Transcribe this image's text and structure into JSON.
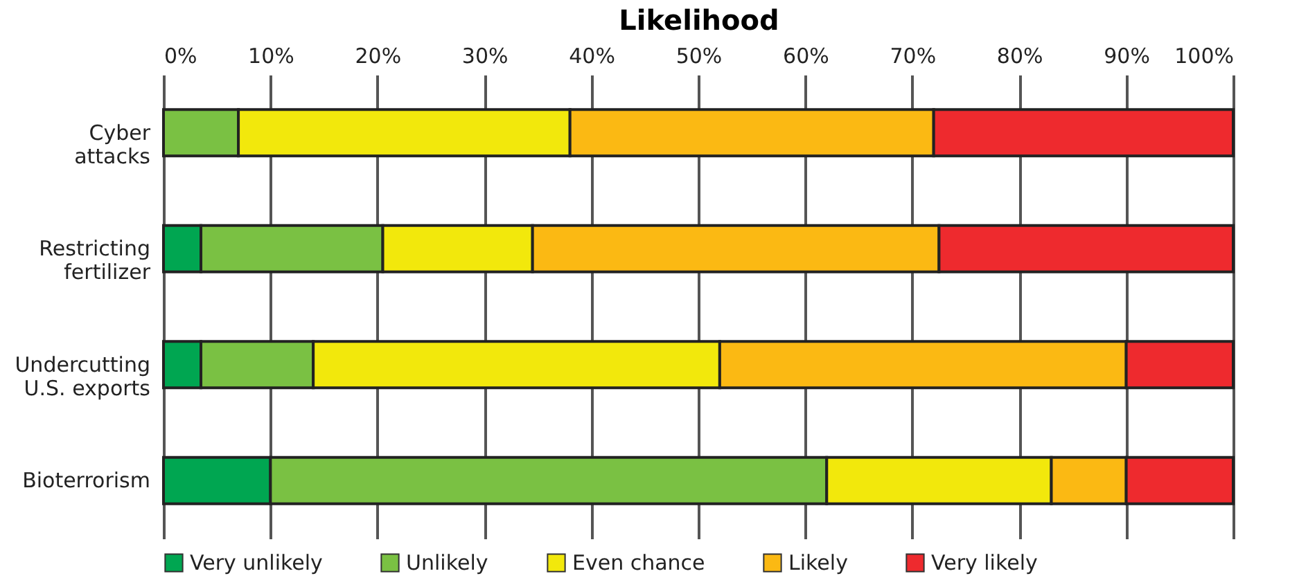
{
  "chart_data": {
    "type": "bar",
    "orientation": "horizontal",
    "stacked": true,
    "xlabel": "Likelihood",
    "categories": [
      "Cyber attacks",
      "Restricting fertilizer",
      "Undercutting U.S. exports",
      "Bioterrorism"
    ],
    "series": [
      {
        "name": "Very unlikely",
        "color": "#00a651",
        "values": [
          0,
          3.5,
          3.5,
          10
        ]
      },
      {
        "name": "Unlikely",
        "color": "#7ac143",
        "values": [
          7,
          17,
          10.5,
          52
        ]
      },
      {
        "name": "Even chance",
        "color": "#f2e80c",
        "values": [
          31,
          14,
          38,
          21
        ]
      },
      {
        "name": "Likely",
        "color": "#fbb913",
        "values": [
          34,
          38,
          38,
          7
        ]
      },
      {
        "name": "Very likely",
        "color": "#ee2a2e",
        "values": [
          28,
          27.5,
          10,
          10
        ]
      }
    ],
    "xlim": [
      0,
      100
    ],
    "xticks": [
      {
        "value": 0,
        "label": "0%"
      },
      {
        "value": 10,
        "label": "10%"
      },
      {
        "value": 20,
        "label": "20%"
      },
      {
        "value": 30,
        "label": "30%"
      },
      {
        "value": 40,
        "label": "40%"
      },
      {
        "value": 50,
        "label": "50%"
      },
      {
        "value": 60,
        "label": "60%"
      },
      {
        "value": 70,
        "label": "70%"
      },
      {
        "value": 80,
        "label": "80%"
      },
      {
        "value": 90,
        "label": "90%"
      },
      {
        "value": 100,
        "label": "100%"
      }
    ],
    "grid": "x",
    "legend": "bottom"
  }
}
